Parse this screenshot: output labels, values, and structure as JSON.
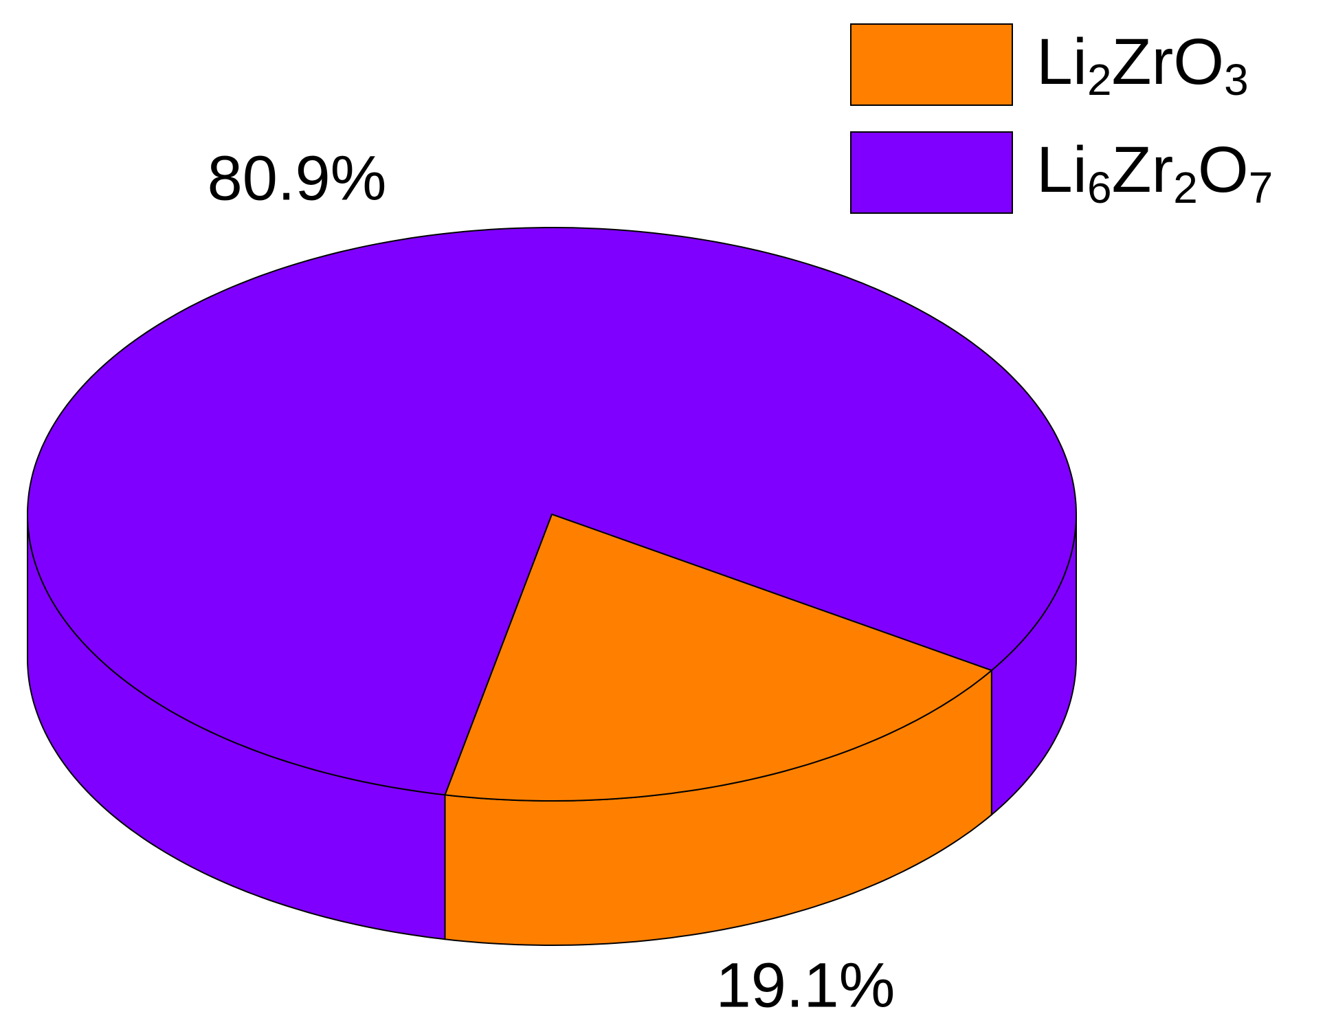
{
  "chart_data": {
    "type": "pie3d",
    "categories": [
      "Li2ZrO3",
      "Li6Zr2O7"
    ],
    "values": [
      19.1,
      80.9
    ],
    "value_labels": [
      "19.1%",
      "80.9%"
    ],
    "colors": [
      "#ff8000",
      "#8000ff"
    ],
    "legend": "top-right"
  }
}
